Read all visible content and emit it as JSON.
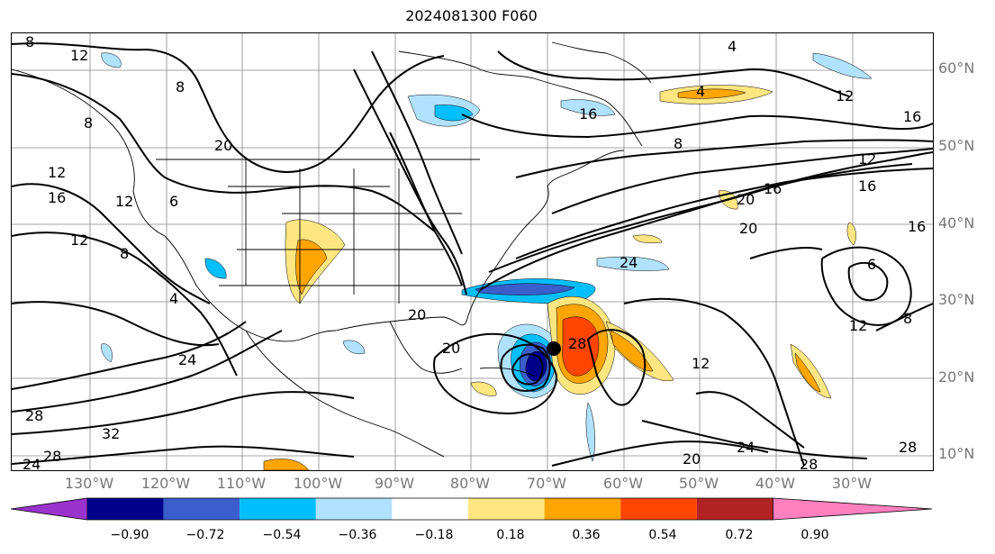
{
  "title": "2024081300 F060",
  "lat_labels": [
    "60°N",
    "50°N",
    "40°N",
    "30°N",
    "20°N",
    "10°N"
  ],
  "lon_labels": [
    "130°W",
    "120°W",
    "110°W",
    "100°W",
    "90°W",
    "80°W",
    "70°W",
    "60°W",
    "50°W",
    "40°W",
    "30°W"
  ],
  "contour_labels": [
    "8",
    "12",
    "8",
    "4",
    "8",
    "4",
    "16",
    "12",
    "16",
    "8",
    "20",
    "12",
    "16",
    "12",
    "6",
    "12",
    "8",
    "4",
    "16",
    "20",
    "12",
    "20",
    "16",
    "24",
    "20",
    "20",
    "28",
    "12",
    "24",
    "28",
    "32",
    "28",
    "24",
    "20",
    "24",
    "28",
    "28",
    "16",
    "6",
    "12",
    "8"
  ],
  "colorbar": {
    "ticks": [
      "−0.90",
      "−0.72",
      "−0.54",
      "−0.36",
      "−0.18",
      "0.18",
      "0.36",
      "0.54",
      "0.72",
      "0.90"
    ],
    "colors": [
      "#9a32cd",
      "#00008b",
      "#3a5fcd",
      "#00bfff",
      "#b0e2ff",
      "#ffffff",
      "#ffe680",
      "#ffa500",
      "#ff4500",
      "#b22222",
      "#ff7fbf"
    ]
  }
}
